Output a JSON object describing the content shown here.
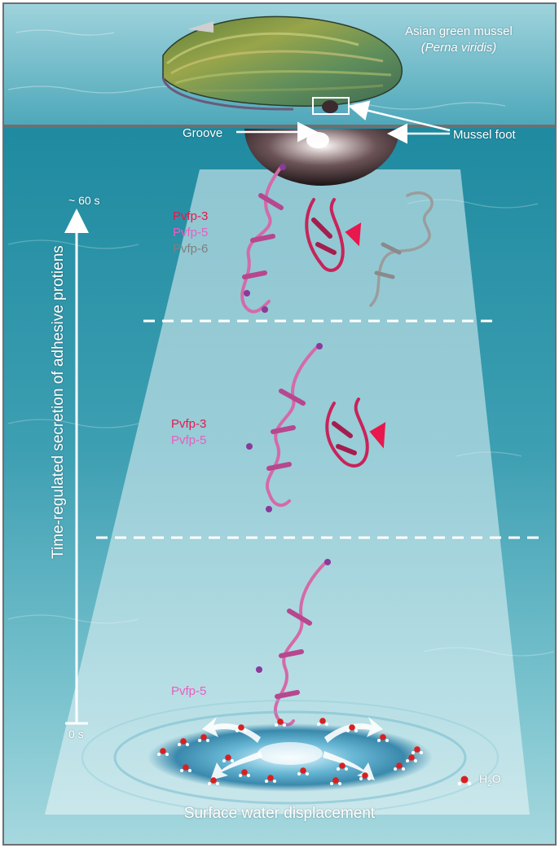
{
  "header": {
    "organism": "Asian green mussel",
    "species": "(Perna viridis)"
  },
  "callouts": {
    "groove": "Groove",
    "mussel_foot": "Mussel foot"
  },
  "stages": [
    {
      "proteins": [
        {
          "name": "Pvfp-3",
          "color": "#e8174d"
        },
        {
          "name": "Pvfp-5",
          "color": "#ec5cc0"
        },
        {
          "name": "Pvfp-6",
          "color": "#7f7f7f"
        }
      ]
    },
    {
      "proteins": [
        {
          "name": "Pvfp-3",
          "color": "#e8174d"
        },
        {
          "name": "Pvfp-5",
          "color": "#ec5cc0"
        }
      ]
    },
    {
      "proteins": [
        {
          "name": "Pvfp-5",
          "color": "#ec5cc0"
        }
      ]
    }
  ],
  "timeline": {
    "start": "0 s",
    "end": "~ 60 s",
    "title": "Time-regulated secretion of adhesive protiens"
  },
  "water_label": "H2O",
  "caption": "Surface water displacement",
  "colors": {
    "water_top": "#3a9bb0",
    "water_bottom": "#7ec8d2",
    "pvfp3": "#e8174d",
    "pvfp5": "#ec5cc0",
    "pvfp6": "#7f7f7f"
  }
}
